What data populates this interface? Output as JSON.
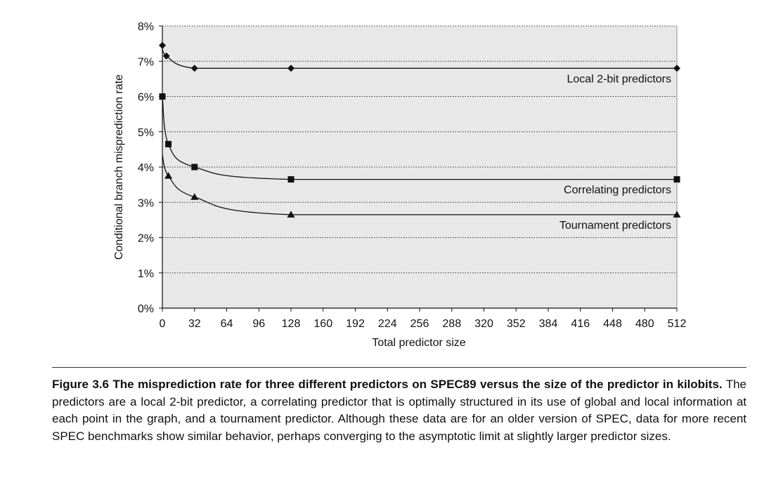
{
  "chart_data": {
    "type": "line",
    "ylabel": "Conditional branch misprediction rate",
    "xlabel": "Total predictor size",
    "xlim": [
      0,
      512
    ],
    "ylim": [
      0,
      8
    ],
    "x_ticks": [
      "0",
      "32",
      "64",
      "96",
      "128",
      "160",
      "192",
      "224",
      "256",
      "288",
      "320",
      "352",
      "384",
      "416",
      "448",
      "480",
      "512"
    ],
    "y_ticks": [
      "0%",
      "1%",
      "2%",
      "3%",
      "4%",
      "5%",
      "6%",
      "7%",
      "8%"
    ],
    "grid": "horizontal dotted",
    "series": [
      {
        "name": "Local 2-bit predictors",
        "marker": "diamond",
        "x": [
          0,
          4,
          32,
          128,
          512
        ],
        "y": [
          7.45,
          7.15,
          6.8,
          6.8,
          6.8
        ]
      },
      {
        "name": "Correlating predictors",
        "marker": "square",
        "x": [
          0,
          6,
          32,
          128,
          512
        ],
        "y": [
          6.0,
          4.65,
          4.0,
          3.65,
          3.65
        ]
      },
      {
        "name": "Tournament predictors",
        "marker": "triangle",
        "x": [
          6,
          32,
          128,
          512
        ],
        "y": [
          3.75,
          3.15,
          2.65,
          2.65
        ]
      }
    ]
  },
  "caption": {
    "label": "Figure 3.6",
    "title": "The misprediction rate for three different predictors on SPEC89 versus the size of the predictor in kilobits.",
    "body": "The predictors are a local 2-bit predictor, a correlating predictor that is optimally structured in its use of global and local information at each point in the graph, and a tournament predictor. Although these data are for an older version of SPEC, data for more recent SPEC benchmarks show similar behavior, perhaps converging to the asymptotic limit at slightly larger predictor sizes."
  },
  "colors": {
    "plot_bg": "#e8e8e8",
    "ink": "#111111"
  }
}
